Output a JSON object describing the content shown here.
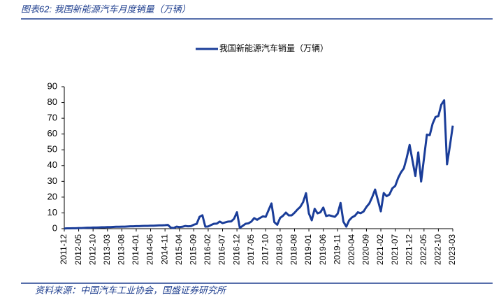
{
  "chart_data": {
    "type": "line",
    "title": "图表62: 我国新能源汽车月度销量（万辆）",
    "source": "资料来源：中国汽车工业协会，国盛证券研究所",
    "categories": [
      "2011-12",
      null,
      null,
      null,
      null,
      "2012-05",
      null,
      null,
      null,
      null,
      "2012-10",
      null,
      null,
      null,
      null,
      "2013-03",
      null,
      null,
      null,
      null,
      "2013-08",
      null,
      null,
      null,
      null,
      "2014-01",
      null,
      null,
      null,
      null,
      "2014-06",
      null,
      null,
      null,
      null,
      "2014-11",
      null,
      null,
      null,
      null,
      "2015-04",
      null,
      null,
      null,
      null,
      "2015-09",
      null,
      null,
      null,
      null,
      "2016-02",
      null,
      null,
      null,
      null,
      "2016-07",
      null,
      null,
      null,
      null,
      "2016-12",
      null,
      null,
      null,
      null,
      "2017-05",
      null,
      null,
      null,
      null,
      "2017-10",
      null,
      null,
      null,
      null,
      "2018-03",
      null,
      null,
      null,
      null,
      "2018-08",
      null,
      null,
      null,
      null,
      "2019-01",
      null,
      null,
      null,
      null,
      "2019-06",
      null,
      null,
      null,
      null,
      "2019-11",
      null,
      null,
      null,
      null,
      "2020-04",
      null,
      null,
      null,
      null,
      "2020-09",
      null,
      null,
      null,
      null,
      "2021-02",
      null,
      null,
      null,
      null,
      "2021-07",
      null,
      null,
      null,
      null,
      "2021-12",
      null,
      null,
      null,
      null,
      "2022-05",
      null,
      null,
      null,
      null,
      "2022-10",
      null,
      null,
      null,
      null,
      "2023-03"
    ],
    "series": [
      {
        "name": "我国新能源汽车销量（万辆）",
        "color": "#1a3d99",
        "values": [
          0.1,
          0.2,
          0.2,
          0.3,
          0.3,
          0.4,
          0.4,
          0.5,
          0.6,
          0.6,
          0.7,
          0.7,
          0.8,
          0.9,
          0.9,
          1.0,
          1.0,
          1.1,
          1.2,
          1.2,
          1.3,
          1.3,
          1.4,
          1.5,
          1.5,
          1.6,
          1.6,
          1.7,
          1.8,
          1.8,
          1.9,
          1.9,
          2.0,
          2.1,
          2.1,
          2.2,
          2.4,
          0.7,
          0.4,
          1.3,
          1.0,
          1.2,
          1.7,
          1.5,
          1.6,
          2.5,
          3.0,
          7.5,
          8.5,
          1.3,
          1.4,
          2.3,
          3.1,
          3.2,
          4.5,
          3.5,
          4.0,
          4.5,
          4.6,
          6.3,
          10.4,
          0.5,
          1.8,
          3.1,
          3.4,
          4.5,
          6.7,
          5.6,
          6.8,
          7.8,
          7.5,
          11.8,
          16.0,
          4.1,
          2.5,
          6.8,
          8.2,
          10.2,
          8.4,
          8.4,
          10.1,
          12.1,
          13.8,
          16.9,
          22.5,
          9.6,
          5.3,
          12.6,
          9.7,
          10.4,
          13.4,
          8.0,
          8.5,
          8.0,
          7.5,
          9.5,
          16.3,
          4.4,
          1.3,
          5.3,
          7.2,
          8.2,
          10.4,
          9.8,
          10.9,
          13.8,
          16.0,
          20.0,
          24.8,
          17.9,
          11.0,
          22.6,
          20.6,
          21.7,
          25.6,
          27.1,
          32.1,
          35.7,
          38.3,
          45.0,
          53.1,
          43.1,
          33.4,
          48.4,
          29.9,
          44.7,
          59.6,
          59.3,
          66.6,
          70.8,
          71.4,
          78.6,
          81.4,
          40.8,
          52.5,
          65.3
        ]
      }
    ],
    "ylim": [
      0,
      90
    ],
    "yticks": [
      0,
      10,
      20,
      30,
      40,
      50,
      60,
      70,
      80,
      90
    ],
    "legend": "top"
  }
}
